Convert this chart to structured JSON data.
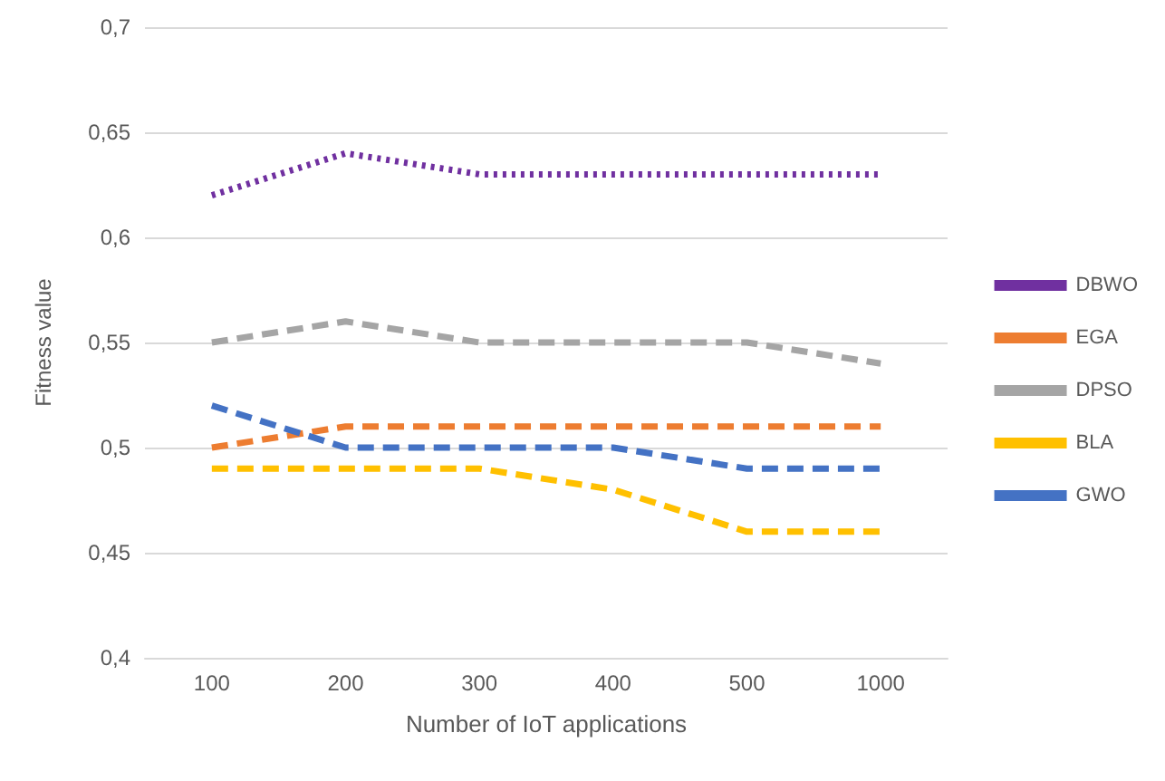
{
  "chart_data": {
    "type": "line",
    "xlabel": "Number of IoT applications",
    "ylabel": "Fitness value",
    "categories": [
      "100",
      "200",
      "300",
      "400",
      "500",
      "1000"
    ],
    "series": [
      {
        "name": "DBWO",
        "color": "#7030a0",
        "line_style": "dotted",
        "values": [
          0.62,
          0.64,
          0.63,
          0.63,
          0.63,
          0.63
        ]
      },
      {
        "name": "EGA",
        "color": "#ed7d31",
        "line_style": "dashed",
        "values": [
          0.5,
          0.51,
          0.51,
          0.51,
          0.51,
          0.51
        ]
      },
      {
        "name": "DPSO",
        "color": "#a5a5a5",
        "line_style": "dashed",
        "values": [
          0.55,
          0.56,
          0.55,
          0.55,
          0.55,
          0.54
        ]
      },
      {
        "name": "BLA",
        "color": "#ffc000",
        "line_style": "dashed",
        "values": [
          0.49,
          0.49,
          0.49,
          0.48,
          0.46,
          0.46
        ]
      },
      {
        "name": "GWO",
        "color": "#4472c4",
        "line_style": "dashed",
        "values": [
          0.52,
          0.5,
          0.5,
          0.5,
          0.49,
          0.49
        ]
      }
    ],
    "ylim": [
      0.4,
      0.7
    ],
    "yticks": [
      {
        "value": 0.4,
        "label": "0,4"
      },
      {
        "value": 0.45,
        "label": "0,45"
      },
      {
        "value": 0.5,
        "label": "0,5"
      },
      {
        "value": 0.55,
        "label": "0,55"
      },
      {
        "value": 0.6,
        "label": "0,6"
      },
      {
        "value": 0.65,
        "label": "0,65"
      },
      {
        "value": 0.7,
        "label": "0,7"
      }
    ],
    "grid": "y",
    "legend": "right",
    "marker": "none"
  }
}
